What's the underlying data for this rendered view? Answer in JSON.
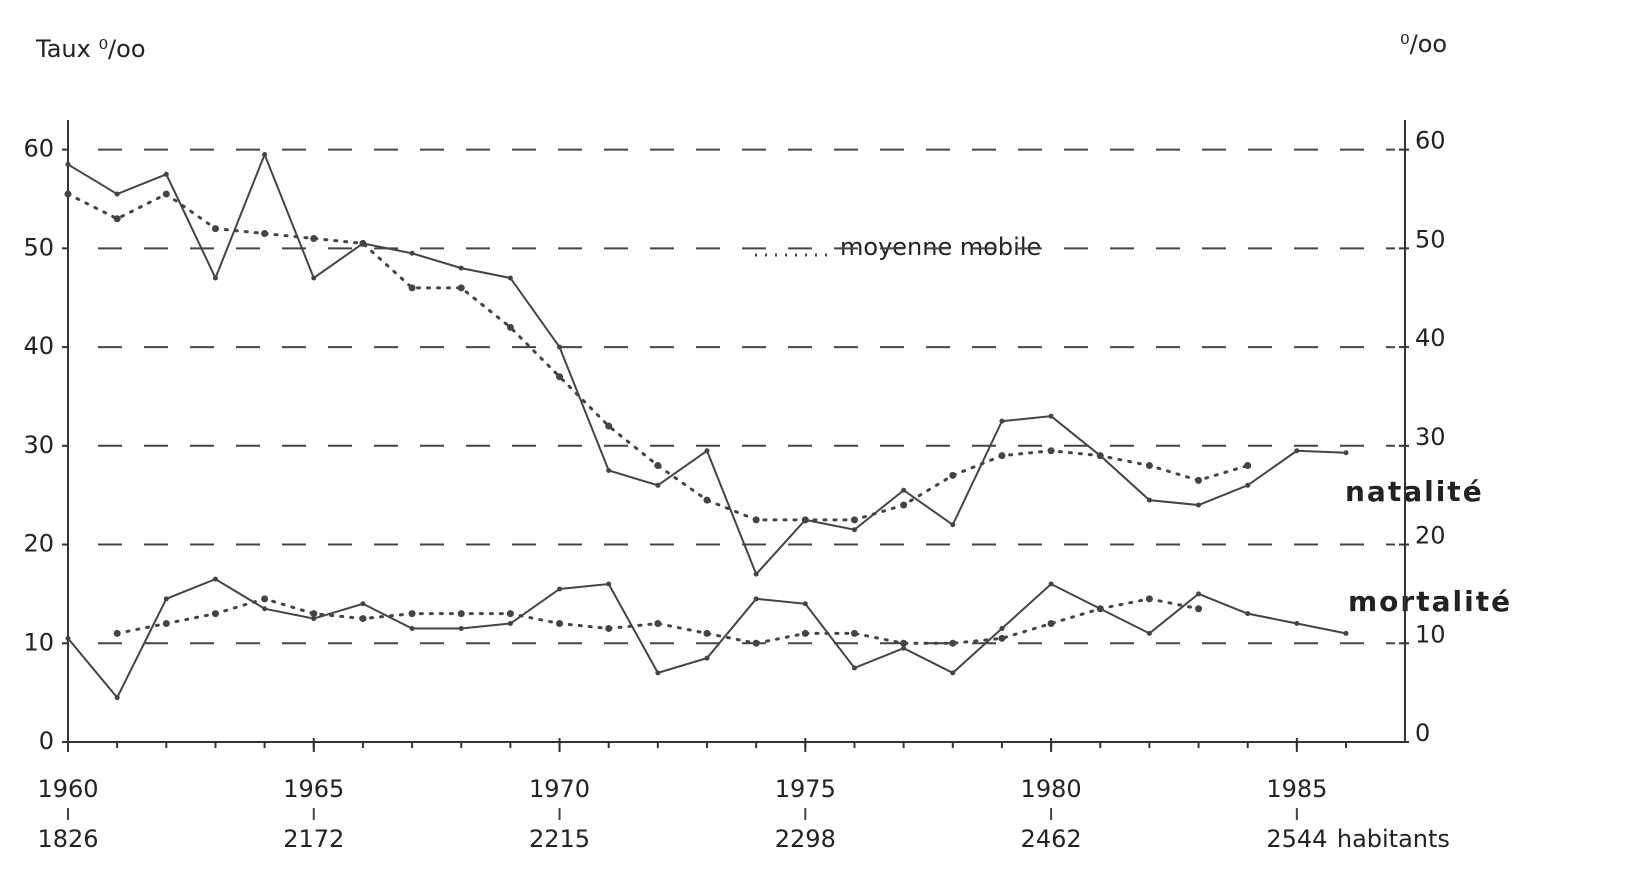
{
  "chart_data": {
    "type": "line",
    "ylabel": "Taux ⁰/oo",
    "y2label": "⁰/oo",
    "moving_average_label": "moyenne mobile",
    "x": [
      1960,
      1961,
      1962,
      1963,
      1964,
      1965,
      1966,
      1967,
      1968,
      1969,
      1970,
      1971,
      1972,
      1973,
      1974,
      1975,
      1976,
      1977,
      1978,
      1979,
      1980,
      1981,
      1982,
      1983,
      1984,
      1985,
      1986
    ],
    "series": [
      {
        "name": "natalité",
        "color": "#444444",
        "values": [
          58.5,
          55.5,
          57.5,
          47,
          59.5,
          47,
          50.5,
          49.5,
          48,
          47,
          40,
          27.5,
          26,
          29.5,
          17,
          22.5,
          21.5,
          25.5,
          22,
          32.5,
          33,
          29,
          24.5,
          24,
          26,
          29.5,
          29.3
        ],
        "moving_average": [
          55.5,
          53,
          55.5,
          52,
          51.5,
          51,
          50.5,
          46,
          46,
          42,
          37,
          32,
          28,
          24.5,
          22.5,
          22.5,
          22.5,
          24,
          27,
          29,
          29.5,
          29,
          28,
          26.5,
          28,
          null,
          null
        ]
      },
      {
        "name": "mortalité",
        "color": "#444444",
        "values": [
          10.5,
          4.5,
          14.5,
          16.5,
          13.5,
          12.5,
          14,
          11.5,
          11.5,
          12,
          15.5,
          16,
          7,
          8.5,
          14.5,
          14,
          7.5,
          9.5,
          7,
          11.5,
          16,
          13.5,
          11,
          15,
          13,
          12,
          11
        ],
        "moving_average": [
          null,
          11,
          12,
          13,
          14.5,
          13,
          12.5,
          13,
          13,
          13,
          12,
          11.5,
          12,
          11,
          10,
          11,
          11,
          10,
          10,
          10.5,
          12,
          13.5,
          14.5,
          13.5,
          null,
          null,
          null
        ]
      }
    ],
    "xlim": [
      1960,
      1987.2
    ],
    "xticks": [
      1960,
      1965,
      1970,
      1975,
      1980,
      1985
    ],
    "population_labels": [
      1826,
      2172,
      2215,
      2298,
      2462,
      2544
    ],
    "population_unit": "habitants",
    "ylim": [
      0,
      63
    ],
    "yticks": [
      0,
      10,
      20,
      30,
      40,
      50,
      60
    ],
    "y2lim": [
      0,
      63
    ],
    "y2ticks": [
      0,
      10,
      20,
      30,
      40,
      50,
      60
    ],
    "grid": true
  }
}
